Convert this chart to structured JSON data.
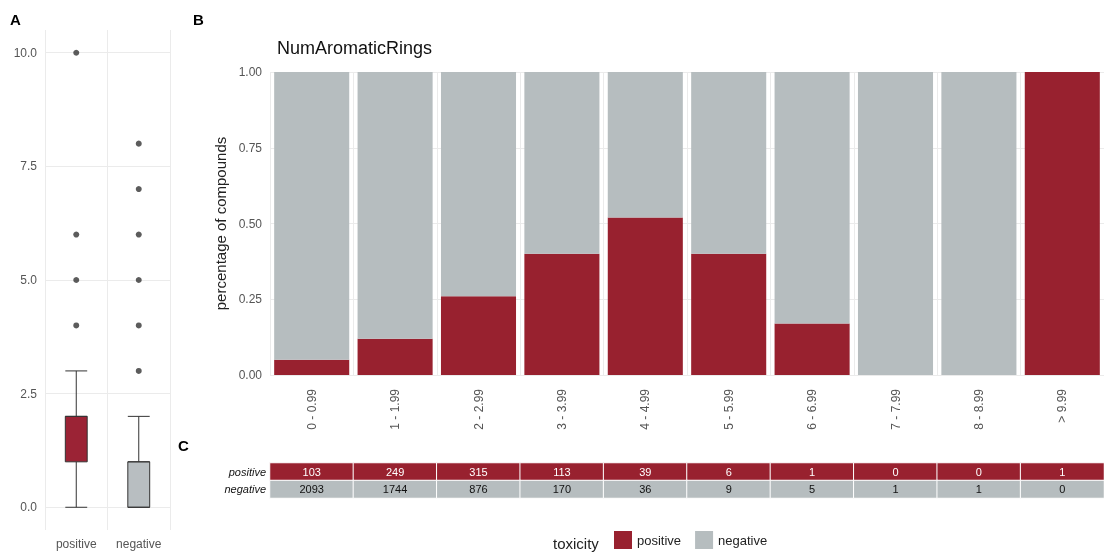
{
  "chart_data": [
    {
      "type": "box",
      "annotations": [
        "A"
      ],
      "categories": [
        "positive",
        "negative"
      ],
      "colors": [
        "#9b2335",
        "#b8bec1"
      ],
      "boxes": [
        {
          "low": 0,
          "q1": 1,
          "median": 2,
          "q3": 2,
          "high": 3,
          "outliers": [
            4,
            5,
            6,
            10
          ]
        },
        {
          "low": 0,
          "q1": 0,
          "median": 1,
          "q3": 1,
          "high": 2,
          "outliers": [
            3,
            4,
            5,
            6,
            7,
            8
          ]
        }
      ],
      "ylim": [
        -0.5,
        10.5
      ],
      "yticks": [
        {
          "value": 0,
          "label": "0.0"
        },
        2.5,
        {
          "value": 5,
          "label": "5.0"
        },
        7.5,
        {
          "value": 10,
          "label": "10.0"
        }
      ],
      "grid": true
    },
    {
      "type": "bar",
      "title": "NumAromaticRings",
      "annotations": [
        "B"
      ],
      "ylabel": "percentage of compounds",
      "legend_title": "toxicity",
      "legend": "bottom",
      "stacked": true,
      "grid": true,
      "categories": [
        "0 - 0.99",
        "1 - 1.99",
        "2 - 2.99",
        "3 - 3.99",
        "4 - 4.99",
        "5 - 5.99",
        "6 - 6.99",
        "7 - 7.99",
        "8 - 8.99",
        "> 9.99"
      ],
      "series": [
        {
          "name": "positive",
          "color": "#98212f",
          "values": [
            0.05,
            0.12,
            0.26,
            0.4,
            0.52,
            0.4,
            0.17,
            0,
            0,
            1
          ]
        },
        {
          "name": "negative",
          "color": "#b6bdbf",
          "values": [
            0.95,
            0.88,
            0.74,
            0.6,
            0.48,
            0.6,
            0.83,
            1,
            1,
            0
          ]
        }
      ],
      "ylim": [
        0,
        1
      ],
      "yticks": [
        {
          "value": 0,
          "label": "0.00"
        },
        0.25,
        {
          "value": 0.5,
          "label": "0.50"
        },
        0.75,
        {
          "value": 1,
          "label": "1.00"
        }
      ]
    },
    {
      "type": "heatmap",
      "annotations": [
        "C"
      ],
      "tick_labels": "y",
      "data_labels": true,
      "categories": [
        null,
        null,
        null,
        null,
        null,
        null,
        null,
        null,
        null,
        null
      ],
      "y_categories": [
        "positive",
        "negative"
      ],
      "colors": [
        "#98212f",
        "#b6bdbf"
      ],
      "cells": [
        [
          103,
          249,
          315,
          113,
          39,
          6,
          1,
          0,
          0,
          1
        ],
        [
          2093,
          1744,
          876,
          170,
          36,
          9,
          5,
          1,
          1,
          0
        ]
      ]
    }
  ]
}
